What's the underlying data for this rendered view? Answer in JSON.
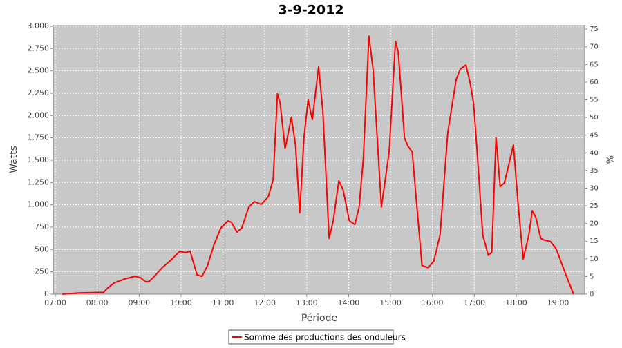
{
  "chart_data": {
    "type": "line",
    "title": "3-9-2012",
    "xlabel": "Période",
    "ylabel": "Watts",
    "y2label": "%",
    "x": [
      "07:10",
      "07:35",
      "08:09",
      "08:14",
      "08:24",
      "08:39",
      "08:54",
      "09:02",
      "09:09",
      "09:14",
      "09:20",
      "09:33",
      "09:46",
      "09:58",
      "10:06",
      "10:13",
      "10:23",
      "10:30",
      "10:38",
      "10:47",
      "10:57",
      "11:07",
      "11:12",
      "11:20",
      "11:27",
      "11:37",
      "11:45",
      "11:55",
      "12:05",
      "12:12",
      "12:18",
      "12:22",
      "12:29",
      "12:38",
      "12:44",
      "12:50",
      "12:56",
      "13:02",
      "13:08",
      "13:17",
      "13:23",
      "13:32",
      "13:38",
      "13:46",
      "13:52",
      "14:01",
      "14:09",
      "14:15",
      "14:21",
      "14:29",
      "14:35",
      "14:47",
      "14:58",
      "15:07",
      "15:11",
      "15:20",
      "15:25",
      "15:31",
      "15:45",
      "15:54",
      "16:02",
      "16:11",
      "16:22",
      "16:34",
      "16:40",
      "16:48",
      "16:54",
      "16:59",
      "17:04",
      "17:12",
      "17:20",
      "17:25",
      "17:31",
      "17:37",
      "17:43",
      "17:56",
      "18:03",
      "18:10",
      "18:18",
      "18:23",
      "18:28",
      "18:35",
      "18:40",
      "18:49",
      "18:57",
      "19:12",
      "19:22"
    ],
    "series": [
      {
        "name": "Somme des productions des onduleurs",
        "color": "#ff0000",
        "values": [
          0,
          15,
          20,
          60,
          125,
          170,
          200,
          185,
          140,
          140,
          185,
          295,
          385,
          480,
          465,
          480,
          215,
          200,
          320,
          550,
          740,
          820,
          805,
          695,
          740,
          975,
          1035,
          1005,
          1090,
          1285,
          2245,
          2135,
          1630,
          1980,
          1670,
          910,
          1750,
          2175,
          1955,
          2545,
          2055,
          625,
          820,
          1270,
          1170,
          820,
          780,
          975,
          1515,
          2890,
          2520,
          975,
          1595,
          2830,
          2715,
          1750,
          1655,
          1595,
          320,
          295,
          370,
          665,
          1810,
          2405,
          2520,
          2565,
          2365,
          2135,
          1595,
          665,
          435,
          470,
          1750,
          1205,
          1245,
          1670,
          975,
          395,
          665,
          935,
          860,
          625,
          605,
          590,
          510,
          200,
          0
        ]
      }
    ],
    "xlim": [
      "06:57",
      "19:38"
    ],
    "xticks": [
      "07:00",
      "08:00",
      "09:00",
      "10:00",
      "11:00",
      "12:00",
      "13:00",
      "14:00",
      "15:00",
      "16:00",
      "17:00",
      "18:00",
      "19:00"
    ],
    "ylim": [
      0,
      3015
    ],
    "yticks": [
      0,
      250,
      500,
      750,
      {
        "value": 1000,
        "label": "1.000"
      },
      {
        "value": 1250,
        "label": "1.250"
      },
      {
        "value": 1500,
        "label": "1.500"
      },
      {
        "value": 1750,
        "label": "1.750"
      },
      {
        "value": 2000,
        "label": "2.000"
      },
      {
        "value": 2250,
        "label": "2.250"
      },
      {
        "value": 2500,
        "label": "2.500"
      },
      {
        "value": 2750,
        "label": "2.750"
      },
      {
        "value": 3000,
        "label": "3.000"
      }
    ],
    "y2lim": [
      0,
      76.2
    ],
    "y2ticks": [
      0,
      5,
      10,
      15,
      20,
      25,
      30,
      35,
      40,
      45,
      50,
      55,
      60,
      65,
      70,
      75
    ],
    "grid": true,
    "legend": "bottom"
  }
}
